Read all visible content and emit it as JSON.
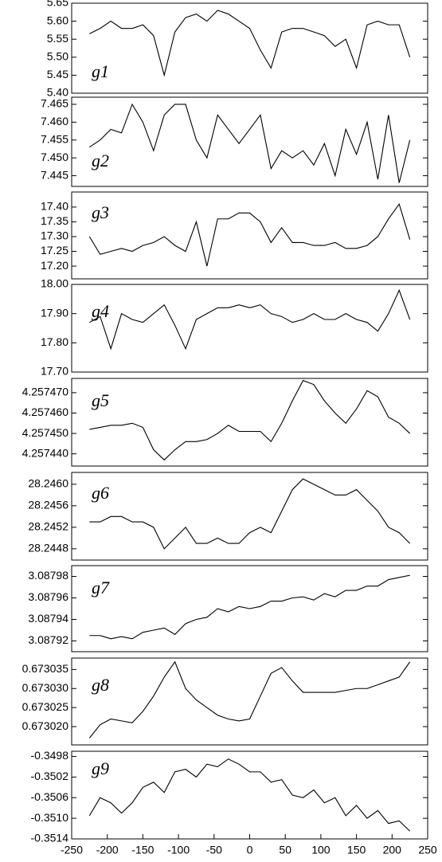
{
  "chart_data": [
    {
      "type": "line",
      "x": [
        -225,
        -210,
        -195,
        -180,
        -165,
        -150,
        -135,
        -120,
        -105,
        -90,
        -75,
        -60,
        -45,
        -30,
        -15,
        0,
        15,
        30,
        45,
        60,
        75,
        90,
        105,
        120,
        135,
        150,
        165,
        180,
        195,
        210,
        225
      ],
      "series": [
        {
          "name": "g1",
          "color": "#000000",
          "values": [
            5.565,
            5.58,
            5.6,
            5.58,
            5.58,
            5.59,
            5.56,
            5.45,
            5.57,
            5.61,
            5.62,
            5.6,
            5.63,
            5.62,
            5.6,
            5.58,
            5.52,
            5.47,
            5.57,
            5.58,
            5.58,
            5.57,
            5.56,
            5.53,
            5.55,
            5.47,
            5.59,
            5.6,
            5.59,
            5.59,
            5.5
          ]
        }
      ],
      "ylim": [
        5.4,
        5.65
      ],
      "yticks": [
        {
          "value": 5.4,
          "label": "5.40"
        },
        5.45,
        {
          "value": 5.5,
          "label": "5.50"
        },
        5.55,
        {
          "value": 5.6,
          "label": "5.60"
        },
        5.65
      ]
    },
    {
      "type": "line",
      "x": [
        -225,
        -210,
        -195,
        -180,
        -165,
        -150,
        -135,
        -120,
        -105,
        -90,
        -75,
        -60,
        -45,
        -30,
        -15,
        0,
        15,
        30,
        45,
        60,
        75,
        90,
        105,
        120,
        135,
        150,
        165,
        180,
        195,
        210,
        225
      ],
      "series": [
        {
          "name": "g2",
          "color": "#000000",
          "values": [
            7.453,
            7.455,
            7.458,
            7.457,
            7.465,
            7.46,
            7.452,
            7.462,
            7.465,
            7.465,
            7.455,
            7.45,
            7.462,
            7.458,
            7.454,
            7.458,
            7.462,
            7.447,
            7.452,
            7.45,
            7.452,
            7.448,
            7.454,
            7.445,
            7.458,
            7.451,
            7.46,
            7.444,
            7.462,
            7.443,
            7.455
          ]
        }
      ],
      "ylim": [
        7.442,
        7.467
      ],
      "yticks": [
        7.445,
        {
          "value": 7.45,
          "label": "7.450"
        },
        7.455,
        {
          "value": 7.46,
          "label": "7.460"
        },
        7.465
      ]
    },
    {
      "type": "line",
      "x": [
        -225,
        -210,
        -195,
        -180,
        -165,
        -150,
        -135,
        -120,
        -105,
        -90,
        -75,
        -60,
        -45,
        -30,
        -15,
        0,
        15,
        30,
        45,
        60,
        75,
        90,
        105,
        120,
        135,
        150,
        165,
        180,
        195,
        210,
        225
      ],
      "series": [
        {
          "name": "g3",
          "color": "#000000",
          "values": [
            17.3,
            17.24,
            17.25,
            17.26,
            17.25,
            17.27,
            17.28,
            17.3,
            17.27,
            17.25,
            17.35,
            17.2,
            17.36,
            17.36,
            17.38,
            17.38,
            17.35,
            17.28,
            17.33,
            17.28,
            17.28,
            17.27,
            17.27,
            17.28,
            17.26,
            17.26,
            17.27,
            17.3,
            17.36,
            17.41,
            17.29
          ]
        }
      ],
      "ylim": [
        17.157,
        17.451
      ],
      "yticks": [
        {
          "value": 17.2,
          "label": "17.20"
        },
        17.25,
        {
          "value": 17.3,
          "label": "17.30"
        },
        17.35,
        {
          "value": 17.4,
          "label": "17.40"
        }
      ]
    },
    {
      "type": "line",
      "x": [
        -225,
        -210,
        -195,
        -180,
        -165,
        -150,
        -135,
        -120,
        -105,
        -90,
        -75,
        -60,
        -45,
        -30,
        -15,
        0,
        15,
        30,
        45,
        60,
        75,
        90,
        105,
        120,
        135,
        150,
        165,
        180,
        195,
        210,
        225
      ],
      "series": [
        {
          "name": "g4",
          "color": "#000000",
          "values": [
            17.87,
            17.89,
            17.78,
            17.9,
            17.88,
            17.87,
            17.9,
            17.93,
            17.86,
            17.78,
            17.88,
            17.9,
            17.92,
            17.92,
            17.93,
            17.92,
            17.93,
            17.9,
            17.89,
            17.87,
            17.88,
            17.9,
            17.88,
            17.88,
            17.9,
            17.88,
            17.87,
            17.84,
            17.9,
            17.98,
            17.88
          ]
        }
      ],
      "ylim": [
        17.7,
        18.0
      ],
      "yticks": [
        {
          "value": 17.7,
          "label": "17.70"
        },
        {
          "value": 17.8,
          "label": "17.80"
        },
        {
          "value": 17.9,
          "label": "17.90"
        },
        {
          "value": 18.0,
          "label": "18.00"
        }
      ]
    },
    {
      "type": "line",
      "x": [
        -225,
        -210,
        -195,
        -180,
        -165,
        -150,
        -135,
        -120,
        -105,
        -90,
        -75,
        -60,
        -45,
        -30,
        -15,
        0,
        15,
        30,
        45,
        60,
        75,
        90,
        105,
        120,
        135,
        150,
        165,
        180,
        195,
        210,
        225
      ],
      "series": [
        {
          "name": "g5",
          "color": "#000000",
          "values": [
            4.257452,
            4.257453,
            4.257454,
            4.257454,
            4.257455,
            4.257453,
            4.257442,
            4.257437,
            4.257442,
            4.257446,
            4.257446,
            4.257447,
            4.25745,
            4.257454,
            4.257451,
            4.257451,
            4.257451,
            4.257446,
            4.257455,
            4.257466,
            4.257476,
            4.257474,
            4.257466,
            4.25746,
            4.257455,
            4.257462,
            4.257471,
            4.257468,
            4.257458,
            4.257455,
            4.25745
          ]
        }
      ],
      "ylim": [
        4.257434,
        4.257477
      ],
      "yticks": [
        {
          "value": 4.25744,
          "label": "4.257440"
        },
        {
          "value": 4.25745,
          "label": "4.257450"
        },
        {
          "value": 4.25746,
          "label": "4.257460"
        },
        {
          "value": 4.25747,
          "label": "4.257470"
        }
      ]
    },
    {
      "type": "line",
      "x": [
        -225,
        -210,
        -195,
        -180,
        -165,
        -150,
        -135,
        -120,
        -105,
        -90,
        -75,
        -60,
        -45,
        -30,
        -15,
        0,
        15,
        30,
        45,
        60,
        75,
        90,
        105,
        120,
        135,
        150,
        165,
        180,
        195,
        210,
        225
      ],
      "series": [
        {
          "name": "g6",
          "color": "#000000",
          "values": [
            28.2453,
            28.2453,
            28.2454,
            28.2454,
            28.2453,
            28.2453,
            28.2452,
            28.2448,
            28.245,
            28.2452,
            28.2449,
            28.2449,
            28.245,
            28.2449,
            28.2449,
            28.2451,
            28.2452,
            28.2451,
            28.2455,
            28.2459,
            28.2461,
            28.246,
            28.2459,
            28.2458,
            28.2458,
            28.2459,
            28.2457,
            28.2455,
            28.2452,
            28.2451,
            28.2449
          ]
        }
      ],
      "ylim": [
        28.24459,
        28.24622
      ],
      "yticks": [
        28.2448,
        28.2452,
        28.2456,
        {
          "value": 28.246,
          "label": "28.2460"
        }
      ]
    },
    {
      "type": "line",
      "x": [
        -225,
        -210,
        -195,
        -180,
        -165,
        -150,
        -135,
        -120,
        -105,
        -90,
        -75,
        -60,
        -45,
        -30,
        -15,
        0,
        15,
        30,
        45,
        60,
        75,
        90,
        105,
        120,
        135,
        150,
        165,
        180,
        195,
        210,
        225
      ],
      "series": [
        {
          "name": "g7",
          "color": "#000000",
          "values": [
            3.087925,
            3.087925,
            3.087922,
            3.087924,
            3.087922,
            3.087928,
            3.08793,
            3.087932,
            3.087926,
            3.087936,
            3.08794,
            3.087942,
            3.08795,
            3.087947,
            3.087952,
            3.08795,
            3.087952,
            3.087957,
            3.087957,
            3.08796,
            3.087961,
            3.087958,
            3.087964,
            3.087961,
            3.087967,
            3.087967,
            3.087971,
            3.087971,
            3.087977,
            3.087979,
            3.087981
          ]
        }
      ],
      "ylim": [
        3.08791,
        3.08799
      ],
      "yticks": [
        3.08792,
        3.08794,
        3.08796,
        3.08798
      ]
    },
    {
      "type": "line",
      "x": [
        -225,
        -210,
        -195,
        -180,
        -165,
        -150,
        -135,
        -120,
        -105,
        -90,
        -75,
        -60,
        -45,
        -30,
        -15,
        0,
        15,
        30,
        45,
        60,
        75,
        90,
        105,
        120,
        135,
        150,
        165,
        180,
        195,
        210,
        225
      ],
      "series": [
        {
          "name": "g8",
          "color": "#000000",
          "values": [
            0.673017,
            0.6730205,
            0.673022,
            0.6730215,
            0.673021,
            0.673024,
            0.673028,
            0.673033,
            0.673037,
            0.67303,
            0.673027,
            0.673025,
            0.673023,
            0.673022,
            0.6730215,
            0.673022,
            0.673028,
            0.673034,
            0.6730355,
            0.673032,
            0.673029,
            0.673029,
            0.673029,
            0.673029,
            0.6730295,
            0.67303,
            0.67303,
            0.673031,
            0.673032,
            0.673033,
            0.673037
          ]
        }
      ],
      "ylim": [
        0.6730152,
        0.673038
      ],
      "yticks": [
        {
          "value": 0.67302,
          "label": "0.673020"
        },
        0.673025,
        {
          "value": 0.67303,
          "label": "0.673030"
        },
        0.673035
      ]
    },
    {
      "type": "line",
      "x": [
        -225,
        -210,
        -195,
        -180,
        -165,
        -150,
        -135,
        -120,
        -105,
        -90,
        -75,
        -60,
        -45,
        -30,
        -15,
        0,
        15,
        30,
        45,
        60,
        75,
        90,
        105,
        120,
        135,
        150,
        165,
        180,
        195,
        210,
        225
      ],
      "series": [
        {
          "name": "g9",
          "color": "#000000",
          "values": [
            -0.35095,
            -0.3506,
            -0.3507,
            -0.3509,
            -0.3507,
            -0.3504,
            -0.3503,
            -0.3505,
            -0.3501,
            -0.35005,
            -0.3502,
            -0.34995,
            -0.35,
            -0.34985,
            -0.34995,
            -0.3501,
            -0.3501,
            -0.3503,
            -0.35025,
            -0.35055,
            -0.3506,
            -0.35045,
            -0.3507,
            -0.3506,
            -0.35095,
            -0.35075,
            -0.351,
            -0.35085,
            -0.3511,
            -0.35105,
            -0.35125
          ]
        }
      ],
      "ylim": [
        -0.3514,
        -0.3497
      ],
      "yticks": [
        -0.3514,
        {
          "value": -0.351,
          "label": "-0.3510"
        },
        -0.3506,
        -0.3502,
        -0.3498
      ],
      "xlim": [
        -250,
        250
      ],
      "xticks": [
        -250,
        -200,
        -150,
        -100,
        -50,
        0,
        50,
        100,
        150,
        200,
        250
      ]
    }
  ]
}
